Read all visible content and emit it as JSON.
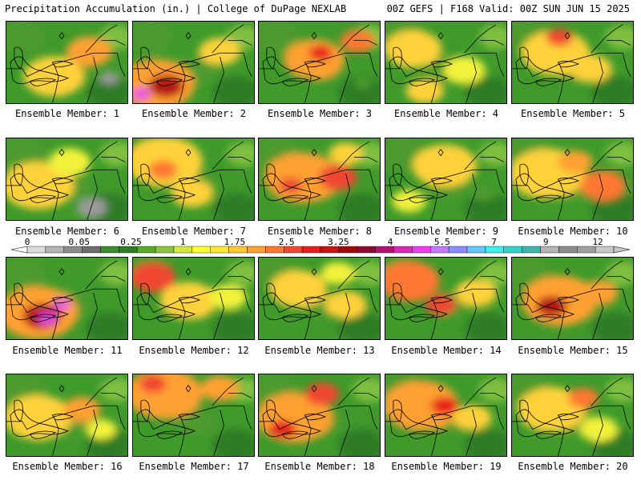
{
  "header": {
    "title": "Precipitation Accumulation (in.) | College of DuPage NEXLAB",
    "run_info": "00Z GEFS | F168 Valid: 00Z SUN JUN 15 2025"
  },
  "panels": [
    {
      "label": "Ensemble Member: 1",
      "hotspots": [
        {
          "cx": 60,
          "cy": 70,
          "r": 32,
          "level": 7
        },
        {
          "cx": 105,
          "cy": 38,
          "r": 24,
          "level": 8
        },
        {
          "cx": 130,
          "cy": 72,
          "r": 10,
          "level": 2
        }
      ]
    },
    {
      "label": "Ensemble Member: 2",
      "hotspots": [
        {
          "cx": 30,
          "cy": 80,
          "r": 40,
          "level": 8
        },
        {
          "cx": 42,
          "cy": 82,
          "r": 18,
          "level": 12
        },
        {
          "cx": 10,
          "cy": 92,
          "r": 10,
          "level": 16
        },
        {
          "cx": 110,
          "cy": 38,
          "r": 22,
          "level": 7
        }
      ]
    },
    {
      "label": "Ensemble Member: 3",
      "hotspots": [
        {
          "cx": 70,
          "cy": 48,
          "r": 32,
          "level": 8
        },
        {
          "cx": 78,
          "cy": 40,
          "r": 12,
          "level": 11
        },
        {
          "cx": 125,
          "cy": 25,
          "r": 18,
          "level": 9
        },
        {
          "cx": 132,
          "cy": 78,
          "r": 9,
          "level": 3
        }
      ]
    },
    {
      "label": "Ensemble Member: 4",
      "hotspots": [
        {
          "cx": 35,
          "cy": 35,
          "r": 30,
          "level": 7
        },
        {
          "cx": 100,
          "cy": 62,
          "r": 22,
          "level": 6
        },
        {
          "cx": 50,
          "cy": 88,
          "r": 20,
          "level": 7
        }
      ]
    },
    {
      "label": "Ensemble Member: 5",
      "hotspots": [
        {
          "cx": 55,
          "cy": 40,
          "r": 36,
          "level": 7
        },
        {
          "cx": 60,
          "cy": 20,
          "r": 14,
          "level": 10
        },
        {
          "cx": 100,
          "cy": 60,
          "r": 22,
          "level": 7
        }
      ]
    },
    {
      "label": "Ensemble Member: 6",
      "hotspots": [
        {
          "cx": 40,
          "cy": 60,
          "r": 38,
          "level": 7
        },
        {
          "cx": 108,
          "cy": 88,
          "r": 16,
          "level": 2
        },
        {
          "cx": 80,
          "cy": 30,
          "r": 22,
          "level": 6
        }
      ]
    },
    {
      "label": "Ensemble Member: 7",
      "hotspots": [
        {
          "cx": 40,
          "cy": 30,
          "r": 40,
          "level": 7
        },
        {
          "cx": 38,
          "cy": 40,
          "r": 15,
          "level": 9
        },
        {
          "cx": 75,
          "cy": 70,
          "r": 22,
          "level": 7
        }
      ]
    },
    {
      "label": "Ensemble Member: 8",
      "hotspots": [
        {
          "cx": 55,
          "cy": 50,
          "r": 40,
          "level": 8
        },
        {
          "cx": 100,
          "cy": 50,
          "r": 20,
          "level": 10
        },
        {
          "cx": 40,
          "cy": 60,
          "r": 12,
          "level": 10
        },
        {
          "cx": 110,
          "cy": 20,
          "r": 18,
          "level": 7
        }
      ]
    },
    {
      "label": "Ensemble Member: 9",
      "hotspots": [
        {
          "cx": 75,
          "cy": 35,
          "r": 34,
          "level": 7
        },
        {
          "cx": 125,
          "cy": 70,
          "r": 12,
          "level": 3
        },
        {
          "cx": 30,
          "cy": 80,
          "r": 18,
          "level": 6
        }
      ]
    },
    {
      "label": "Ensemble Member: 10",
      "hotspots": [
        {
          "cx": 45,
          "cy": 45,
          "r": 40,
          "level": 7
        },
        {
          "cx": 115,
          "cy": 60,
          "r": 24,
          "level": 9
        },
        {
          "cx": 80,
          "cy": 30,
          "r": 18,
          "level": 8
        }
      ]
    },
    {
      "label": "Ensemble Member: 11",
      "hotspots": [
        {
          "cx": 40,
          "cy": 70,
          "r": 42,
          "level": 8
        },
        {
          "cx": 45,
          "cy": 75,
          "r": 20,
          "level": 12
        },
        {
          "cx": 52,
          "cy": 78,
          "r": 10,
          "level": 16
        },
        {
          "cx": 70,
          "cy": 60,
          "r": 9,
          "level": 16
        }
      ]
    },
    {
      "label": "Ensemble Member: 12",
      "hotspots": [
        {
          "cx": 25,
          "cy": 25,
          "r": 24,
          "level": 10
        },
        {
          "cx": 70,
          "cy": 55,
          "r": 30,
          "level": 7
        },
        {
          "cx": 120,
          "cy": 50,
          "r": 20,
          "level": 6
        }
      ]
    },
    {
      "label": "Ensemble Member: 13",
      "hotspots": [
        {
          "cx": 50,
          "cy": 40,
          "r": 30,
          "level": 7
        },
        {
          "cx": 110,
          "cy": 60,
          "r": 22,
          "level": 7
        },
        {
          "cx": 100,
          "cy": 20,
          "r": 18,
          "level": 6
        }
      ]
    },
    {
      "label": "Ensemble Member: 14",
      "hotspots": [
        {
          "cx": 30,
          "cy": 30,
          "r": 32,
          "level": 9
        },
        {
          "cx": 70,
          "cy": 60,
          "r": 16,
          "level": 10
        },
        {
          "cx": 115,
          "cy": 45,
          "r": 22,
          "level": 7
        }
      ]
    },
    {
      "label": "Ensemble Member: 15",
      "hotspots": [
        {
          "cx": 60,
          "cy": 55,
          "r": 40,
          "level": 8
        },
        {
          "cx": 50,
          "cy": 62,
          "r": 16,
          "level": 12
        },
        {
          "cx": 110,
          "cy": 45,
          "r": 20,
          "level": 8
        }
      ]
    },
    {
      "label": "Ensemble Member: 16",
      "hotspots": [
        {
          "cx": 40,
          "cy": 55,
          "r": 36,
          "level": 7
        },
        {
          "cx": 95,
          "cy": 45,
          "r": 20,
          "level": 8
        },
        {
          "cx": 120,
          "cy": 70,
          "r": 16,
          "level": 6
        }
      ]
    },
    {
      "label": "Ensemble Member: 17",
      "hotspots": [
        {
          "cx": 40,
          "cy": 25,
          "r": 40,
          "level": 8
        },
        {
          "cx": 25,
          "cy": 12,
          "r": 14,
          "level": 10
        },
        {
          "cx": 110,
          "cy": 18,
          "r": 20,
          "level": 8
        },
        {
          "cx": 98,
          "cy": 70,
          "r": 9,
          "level": 3
        }
      ]
    },
    {
      "label": "Ensemble Member: 18",
      "hotspots": [
        {
          "cx": 45,
          "cy": 55,
          "r": 40,
          "level": 8
        },
        {
          "cx": 30,
          "cy": 70,
          "r": 14,
          "level": 11
        },
        {
          "cx": 80,
          "cy": 25,
          "r": 18,
          "level": 10
        }
      ]
    },
    {
      "label": "Ensemble Member: 19",
      "hotspots": [
        {
          "cx": 45,
          "cy": 40,
          "r": 40,
          "level": 8
        },
        {
          "cx": 75,
          "cy": 40,
          "r": 14,
          "level": 11
        },
        {
          "cx": 110,
          "cy": 55,
          "r": 20,
          "level": 7
        }
      ]
    },
    {
      "label": "Ensemble Member: 20",
      "hotspots": [
        {
          "cx": 50,
          "cy": 45,
          "r": 36,
          "level": 7
        },
        {
          "cx": 90,
          "cy": 30,
          "r": 16,
          "level": 9
        },
        {
          "cx": 110,
          "cy": 70,
          "r": 20,
          "level": 6
        }
      ]
    }
  ],
  "colorbar": {
    "tick_labels": [
      "0",
      "0.05",
      "0.25",
      "1",
      "1.75",
      "2.5",
      "3.25",
      "4",
      "5.5",
      "7",
      "9",
      "12"
    ],
    "colors": [
      "#dcdcdc",
      "#b4b4b4",
      "#8c8c8c",
      "#6e6e6e",
      "#3b8c2c",
      "#2e7d25",
      "#5aaa2a",
      "#8cc63f",
      "#d7e63c",
      "#ffff32",
      "#ffe632",
      "#ffc832",
      "#ffa032",
      "#ff7832",
      "#f04632",
      "#e61e1e",
      "#c81414",
      "#a00a0a",
      "#8c0a32",
      "#b4146e",
      "#dc28b4",
      "#f03cf0",
      "#c878ff",
      "#8c8cff",
      "#64c8ff",
      "#3cf0f0",
      "#32d2c8",
      "#3cb4aa",
      "#b4b4b4",
      "#8c8c8c",
      "#a0a0a0",
      "#c8c8c8"
    ]
  },
  "level_colors": [
    "#2e7d25",
    "#5a9a4a",
    "#9a9a9a",
    "#4d9a2e",
    "#7fbf3f",
    "#c4dc3c",
    "#f2f23a",
    "#ffd23a",
    "#ffa030",
    "#ff7830",
    "#f04630",
    "#e61e1e",
    "#b41414",
    "#8c0a32",
    "#b4146e",
    "#dc28b4",
    "#e650e6"
  ]
}
